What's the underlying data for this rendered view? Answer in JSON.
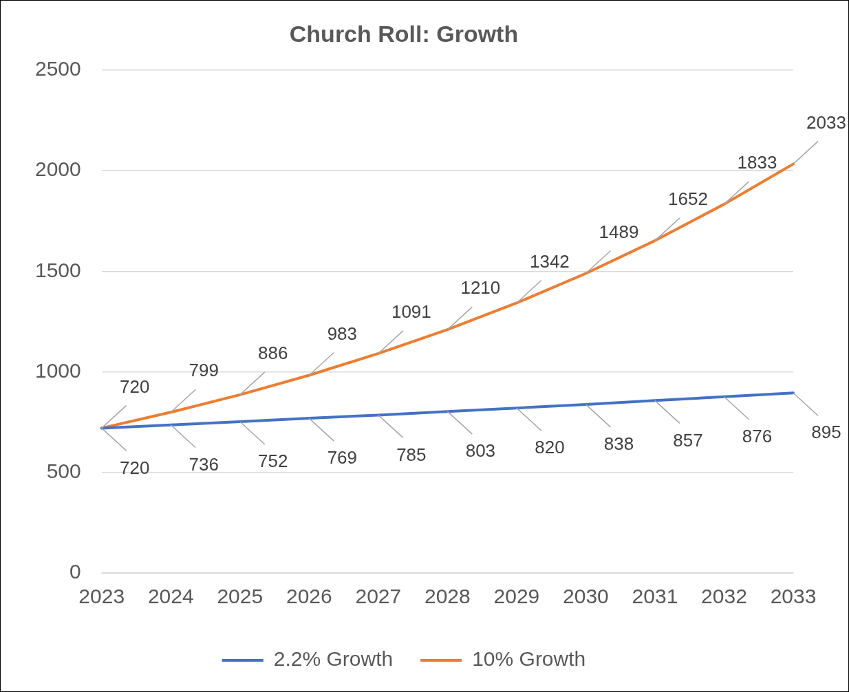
{
  "chart_data": {
    "type": "line",
    "title": "Church Roll: Growth",
    "categories": [
      "2023",
      "2024",
      "2025",
      "2026",
      "2027",
      "2028",
      "2029",
      "2030",
      "2031",
      "2032",
      "2033"
    ],
    "series": [
      {
        "name": "2.2% Growth",
        "color": "#4472c4",
        "values": [
          720,
          736,
          752,
          769,
          785,
          803,
          820,
          838,
          857,
          876,
          895
        ]
      },
      {
        "name": "10% Growth",
        "color": "#ed7d31",
        "values": [
          720,
          799,
          886,
          983,
          1091,
          1210,
          1342,
          1489,
          1652,
          1833,
          2033
        ]
      }
    ],
    "ylim": [
      0,
      2500
    ],
    "yticks": [
      0,
      500,
      1000,
      1500,
      2000,
      2500
    ],
    "grid": "y",
    "legend": "bottom",
    "marker": "none",
    "line_style": "solid",
    "data_labels": true
  }
}
